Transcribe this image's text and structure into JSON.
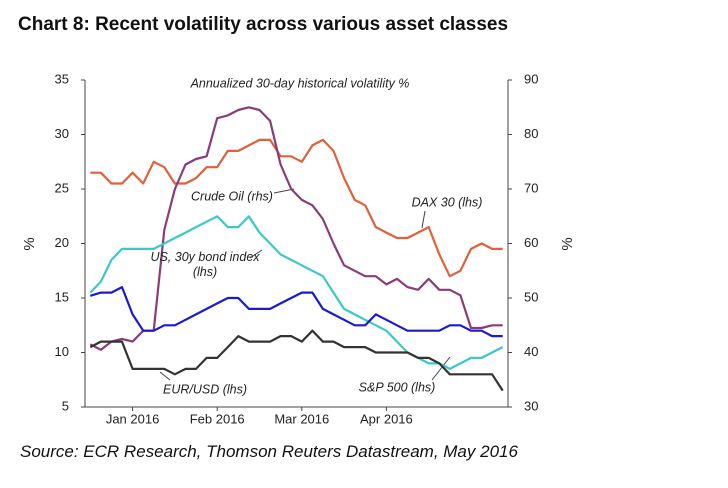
{
  "chart_data": {
    "type": "line",
    "title": "Chart 8:  Recent volatility across various asset classes",
    "subtitle": "Annualized 30-day historical volatility %",
    "y_label": "%",
    "y2_label": "%",
    "source": "Source: ECR Research, Thomson Reuters Datastream, May 2016",
    "categories": [
      null,
      null,
      null,
      null,
      "Jan 2016",
      null,
      null,
      null,
      null,
      null,
      null,
      null,
      "Feb 2016",
      null,
      null,
      null,
      null,
      null,
      null,
      null,
      "Mar 2016",
      null,
      null,
      null,
      null,
      null,
      null,
      null,
      "Apr 2016",
      null,
      null,
      null,
      null,
      null,
      null,
      null,
      null,
      null,
      null,
      null
    ],
    "ylim": [
      5,
      35
    ],
    "yticks": [
      5,
      10,
      15,
      20,
      25,
      30,
      35
    ],
    "y2lim": [
      30,
      90
    ],
    "y2ticks": [
      30,
      40,
      50,
      60,
      70,
      80,
      90
    ],
    "grid": false,
    "series": [
      {
        "name": "DAX 30 (lhs)",
        "color": "#e0603a",
        "values": [
          26.5,
          26.5,
          25.5,
          25.5,
          26.5,
          25.5,
          27.5,
          27,
          25.5,
          25.5,
          26,
          27,
          27,
          28.5,
          28.5,
          29,
          29.5,
          29.5,
          28,
          28,
          27.5,
          29,
          29.5,
          28.5,
          26,
          24,
          23.5,
          21.5,
          21,
          20.5,
          20.5,
          21,
          21.5,
          19,
          17,
          17.5,
          19.5,
          20,
          19.5,
          19.5
        ]
      },
      {
        "name": "Crude Oil (rhs)",
        "color": "#8b3a7a",
        "axis": "y2",
        "values": [
          41.5,
          40.5,
          42,
          42.5,
          42,
          44,
          44,
          62.5,
          70,
          74.5,
          75.5,
          76,
          83,
          83.5,
          84.5,
          85,
          84.5,
          82.5,
          74.5,
          70,
          68,
          67,
          64.5,
          60,
          56,
          55,
          54,
          54,
          52.5,
          53.5,
          52,
          51.5,
          53.5,
          51.5,
          51.5,
          50.5,
          44.5,
          44.5,
          45,
          45
        ]
      },
      {
        "name": "US, 30y bond index (lhs)",
        "color": "#3cc8c8",
        "values": [
          15.5,
          16.5,
          18.5,
          19.5,
          19.5,
          19.5,
          19.5,
          20,
          20.5,
          21,
          21.5,
          22,
          22.5,
          21.5,
          21.5,
          22.5,
          21,
          20,
          19,
          18.5,
          18,
          17.5,
          17,
          15.5,
          14,
          13.5,
          13,
          12.5,
          12,
          11,
          10,
          9.5,
          9,
          9,
          8.5,
          9,
          9.5,
          9.5,
          10,
          10.5
        ]
      },
      {
        "name": "S&P 500 (lhs)",
        "color": "#1a1ad0",
        "values": [
          15.2,
          15.5,
          15.5,
          16,
          13.5,
          12,
          12,
          12.5,
          12.5,
          13,
          13.5,
          14,
          14.5,
          15,
          15,
          14,
          14,
          14,
          14.5,
          15,
          15.5,
          15.5,
          14,
          13.5,
          13,
          12.5,
          12.5,
          13.5,
          13,
          12.5,
          12,
          12,
          12,
          12,
          12.5,
          12.5,
          12,
          12,
          11.5,
          11.5
        ]
      },
      {
        "name": "EUR/USD (lhs)",
        "color": "#333333",
        "values": [
          10.5,
          11,
          11,
          11,
          8.5,
          8.5,
          8.5,
          8.5,
          8,
          8.5,
          8.5,
          9.5,
          9.5,
          10.5,
          11.5,
          11,
          11,
          11,
          11.5,
          11.5,
          11,
          12,
          11,
          11,
          10.5,
          10.5,
          10.5,
          10,
          10,
          10,
          10,
          9.5,
          9.5,
          9,
          8,
          8,
          8,
          8,
          8,
          6.5
        ]
      }
    ]
  }
}
